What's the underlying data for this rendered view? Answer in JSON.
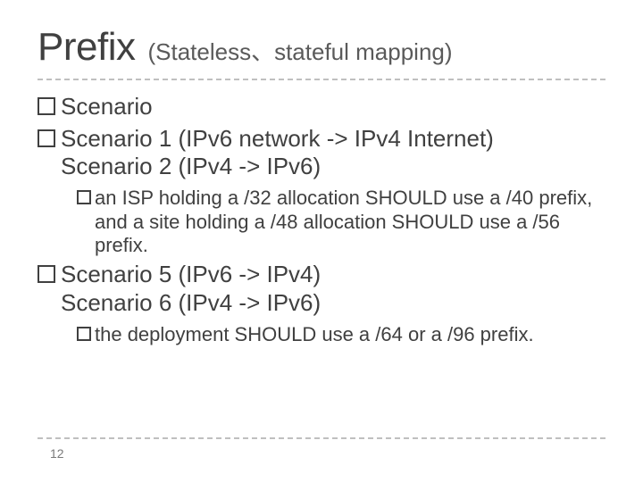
{
  "title": {
    "main": "Prefix",
    "sub": "(Stateless、stateful mapping)",
    "main_fontsize": 44,
    "sub_fontsize": 26,
    "color": "#404040"
  },
  "body_fontsize": 26,
  "sub_body_fontsize": 22,
  "text_color": "#404040",
  "bullets": {
    "b1": "Scenario",
    "b2": "Scenario 1 (IPv6 network -> IPv4 Internet)",
    "b2_line2": "Scenario 2 (IPv4  ->  IPv6)",
    "b2_sub": "an ISP holding a /32 allocation SHOULD use a /40 prefix, and a site holding a /48 allocation SHOULD use a /56 prefix.",
    "b3": "Scenario 5 (IPv6 -> IPv4)",
    "b3_line2": "Scenario 6 (IPv4 -> IPv6)",
    "b3_sub": " the deployment SHOULD use a /64 or a /96 prefix."
  },
  "divider_color": "#bfbfbf",
  "background_color": "#ffffff",
  "page_number": "12"
}
